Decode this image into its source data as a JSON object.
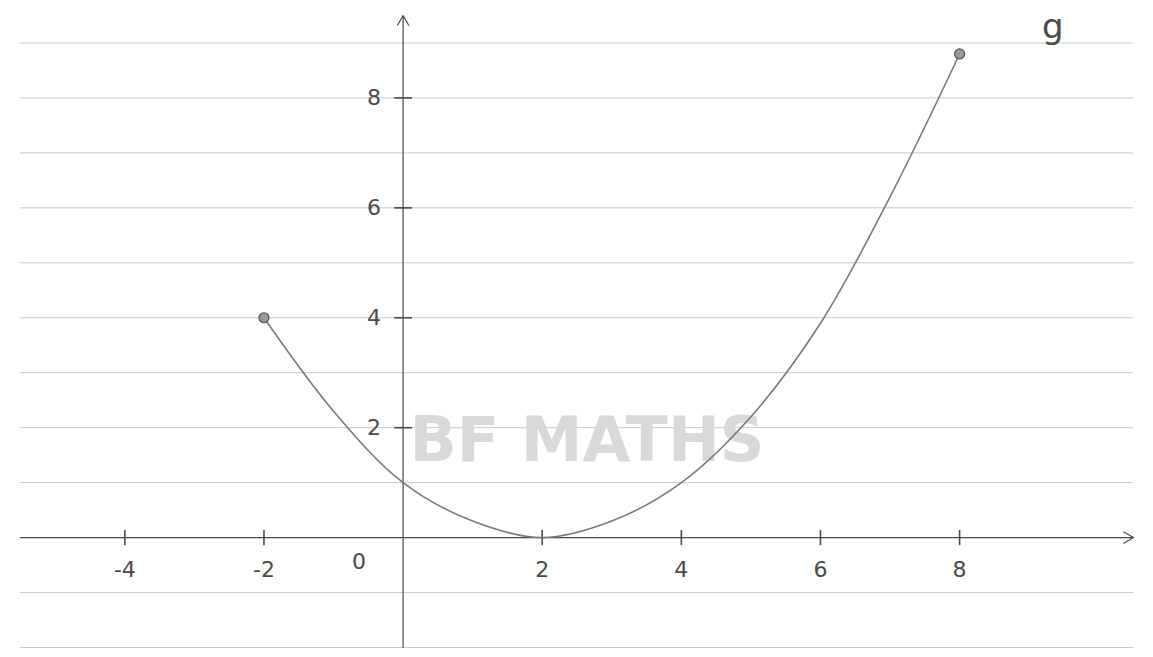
{
  "chart_data": {
    "type": "line",
    "title": "g",
    "annotations": [
      "BF MATHS"
    ],
    "x": [
      -2,
      -1,
      0,
      1,
      2,
      3,
      4,
      5,
      6,
      7,
      8
    ],
    "values": [
      4,
      2.3,
      1,
      0.3,
      0,
      0.3,
      1,
      2.2,
      3.9,
      6.2,
      8.8
    ],
    "color": "#7a7a7a",
    "marker": "endpoints",
    "xlim": [
      -5.5,
      10.5
    ],
    "ylim": [
      -2,
      9.5
    ],
    "xticks": [
      -4,
      -2,
      0,
      2,
      4,
      6,
      8
    ],
    "yticks": [
      2,
      4,
      6,
      8
    ]
  }
}
